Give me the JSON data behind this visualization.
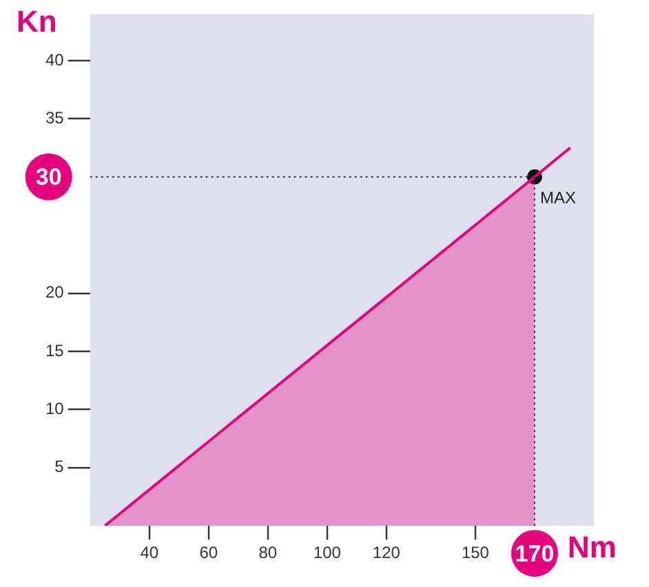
{
  "chart_data": {
    "type": "line",
    "xlabel": "Nm",
    "ylabel": "Kn",
    "xlim": [
      20,
      190
    ],
    "ylim": [
      0,
      44
    ],
    "xticks": [
      40,
      60,
      80,
      100,
      120,
      150
    ],
    "yticks": [
      5,
      10,
      15,
      20,
      35,
      40
    ],
    "grid": false,
    "legend": false,
    "line_style": "solid",
    "series": [
      {
        "type": "area",
        "color": "#e6007e",
        "marker": "none",
        "x": [
          25,
          170
        ],
        "values": [
          0,
          30
        ]
      },
      {
        "color": "#e6007e",
        "marker": "none",
        "x": [
          170,
          182
        ],
        "values": [
          30,
          32.5
        ]
      },
      {
        "type": "scatter",
        "color": "#111111",
        "marker": "circle",
        "x": [
          170
        ],
        "values": [
          30
        ]
      }
    ],
    "ref_lines": [
      {
        "axis": "y",
        "value": 30,
        "label": "30",
        "color": "#333333",
        "line_style": "dotted"
      },
      {
        "axis": "x",
        "value": 170,
        "label": "170",
        "color": "#333333",
        "line_style": "dotted"
      }
    ],
    "annotations": [
      {
        "text": "MAX",
        "x": 170,
        "y": 30
      }
    ]
  }
}
